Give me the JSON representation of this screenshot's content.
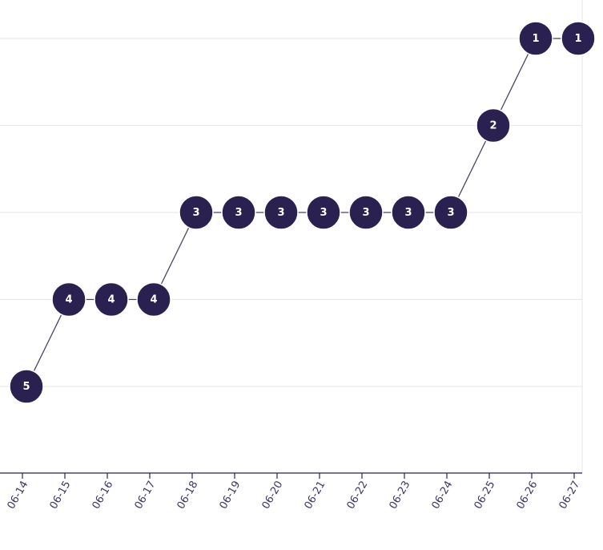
{
  "chart_data": {
    "type": "line",
    "title": "",
    "xlabel": "",
    "ylabel": "",
    "y_inverted": true,
    "ylim": [
      6,
      1
    ],
    "grid": true,
    "point_labels_shown": true,
    "x": [
      "06-14",
      "06-15",
      "06-16",
      "06-17",
      "06-18",
      "06-19",
      "06-20",
      "06-21",
      "06-22",
      "06-23",
      "06-24",
      "06-25",
      "06-26",
      "06-27"
    ],
    "series": [
      {
        "values": [
          5,
          4,
          4,
          4,
          3,
          3,
          3,
          3,
          3,
          3,
          3,
          2,
          1,
          1
        ],
        "color": "#2b2150",
        "line_color": "#4a4560"
      }
    ]
  }
}
